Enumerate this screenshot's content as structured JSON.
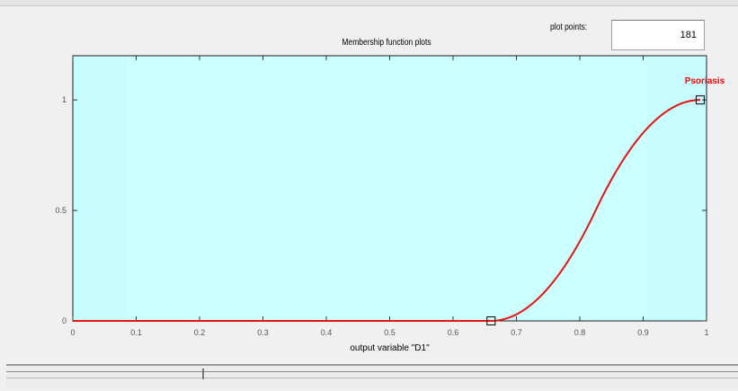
{
  "plot_points": {
    "label": "plot points:",
    "value": "181"
  },
  "chart_data": {
    "type": "line",
    "title": "Membership function plots",
    "xlabel": "output variable \"D1\"",
    "ylabel": "",
    "xlim": [
      0,
      1
    ],
    "ylim": [
      0,
      1.2
    ],
    "x_ticks": [
      "0",
      "0.1",
      "0.2",
      "0.3",
      "0.4",
      "0.5",
      "0.6",
      "0.7",
      "0.8",
      "0.9",
      "1"
    ],
    "y_ticks": [
      "0",
      "0.5",
      "1"
    ],
    "grid": false,
    "series": [
      {
        "name": "Psoriasis",
        "shape": "smf",
        "params": [
          0.66,
          0.99
        ],
        "x": [
          0.0,
          0.1,
          0.2,
          0.3,
          0.4,
          0.5,
          0.6,
          0.66,
          0.7,
          0.75,
          0.8,
          0.85,
          0.9,
          0.95,
          0.99
        ],
        "values": [
          0,
          0,
          0,
          0,
          0,
          0,
          0,
          0,
          0.03,
          0.16,
          0.41,
          0.7,
          0.89,
          0.99,
          1.0
        ],
        "handles": [
          [
            0.66,
            0
          ],
          [
            0.99,
            1
          ]
        ]
      }
    ],
    "colors": {
      "plot_bg": "#ccffff",
      "curve": "#e81212",
      "label": "#ff0000"
    }
  }
}
